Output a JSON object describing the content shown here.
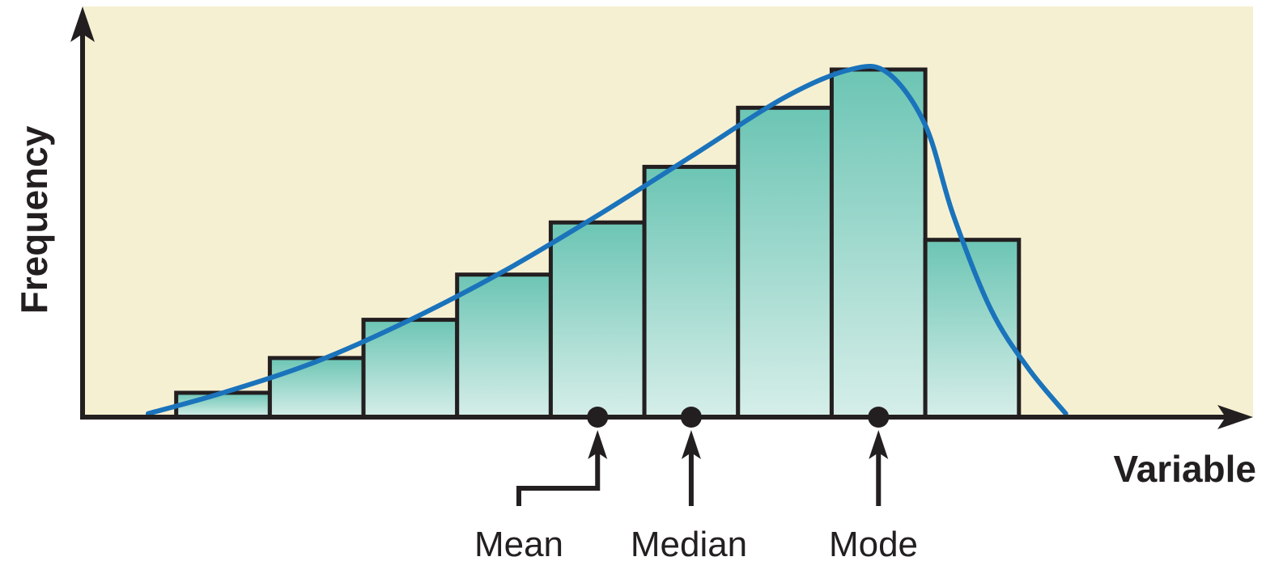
{
  "chart_data": {
    "type": "bar",
    "title": "",
    "xlabel": "Variable",
    "ylabel": "Frequency",
    "bins": [
      {
        "start": 1,
        "end": 2,
        "value": 7
      },
      {
        "start": 2,
        "end": 3,
        "value": 17
      },
      {
        "start": 3,
        "end": 4,
        "value": 28
      },
      {
        "start": 4,
        "end": 5,
        "value": 41
      },
      {
        "start": 5,
        "end": 6,
        "value": 56
      },
      {
        "start": 6,
        "end": 7,
        "value": 72
      },
      {
        "start": 7,
        "end": 8,
        "value": 89
      },
      {
        "start": 8,
        "end": 9,
        "value": 100
      },
      {
        "start": 9,
        "end": 10,
        "value": 51
      }
    ],
    "curve": {
      "x": [
        0.7,
        1.5,
        2.5,
        3.5,
        4.5,
        5.5,
        6.5,
        7.5,
        8.2,
        8.6,
        9.0,
        9.3,
        9.7,
        10.1,
        10.5
      ],
      "y": [
        1,
        7,
        16,
        28,
        42,
        58,
        75,
        92,
        100,
        99,
        84,
        58,
        31,
        14,
        1
      ]
    },
    "markers": [
      {
        "label": "Mean",
        "x": 5.5
      },
      {
        "label": "Median",
        "x": 6.5
      },
      {
        "label": "Mode",
        "x": 8.5
      }
    ],
    "xlim": [
      0,
      12.5
    ],
    "ylim": [
      0,
      100
    ],
    "grid": false,
    "colors": {
      "background": "#f6f0d2",
      "bar_top": "#6cc5b4",
      "bar_bottom": "#d6eee9",
      "curve": "#1a73bb",
      "axis": "#231f20"
    }
  }
}
